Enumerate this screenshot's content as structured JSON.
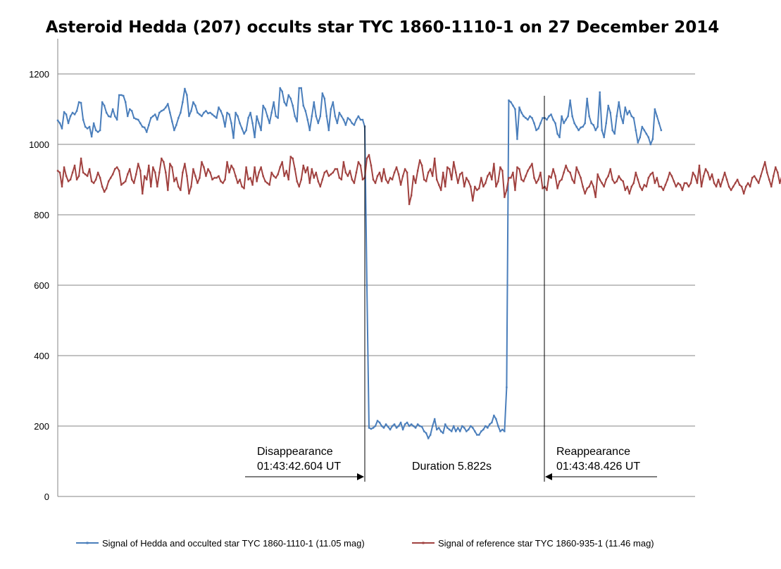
{
  "chart_data": {
    "type": "line",
    "title": "Asteroid Hedda (207) occults star TYC 1860-1110-1 on 27 December 2014",
    "xlabel": "",
    "ylabel": "",
    "ylim": [
      0,
      1300
    ],
    "yticks": [
      0,
      200,
      400,
      600,
      800,
      1000,
      1200
    ],
    "xlim": [
      0,
      301
    ],
    "grid": "horizontal",
    "legend": "bottom",
    "series": [
      {
        "name": "Signal of Hedda and occulted star TYC 1860-1110-1 (11.05 mag)",
        "color": "#4a7ebb",
        "values": [
          1068,
          1060,
          1045,
          1092,
          1085,
          1060,
          1080,
          1090,
          1085,
          1095,
          1120,
          1118,
          1070,
          1050,
          1045,
          1050,
          1022,
          1060,
          1040,
          1035,
          1040,
          1120,
          1110,
          1090,
          1080,
          1078,
          1100,
          1080,
          1070,
          1140,
          1140,
          1138,
          1120,
          1080,
          1100,
          1095,
          1075,
          1072,
          1070,
          1060,
          1050,
          1048,
          1035,
          1055,
          1075,
          1080,
          1085,
          1070,
          1090,
          1095,
          1098,
          1105,
          1115,
          1090,
          1065,
          1040,
          1055,
          1075,
          1090,
          1120,
          1158,
          1140,
          1080,
          1095,
          1120,
          1110,
          1090,
          1085,
          1080,
          1090,
          1095,
          1088,
          1090,
          1085,
          1080,
          1075,
          1105,
          1095,
          1080,
          1050,
          1090,
          1085,
          1060,
          1018,
          1090,
          1080,
          1060,
          1045,
          1030,
          1040,
          1075,
          1090,
          1060,
          1020,
          1080,
          1060,
          1040,
          1110,
          1100,
          1080,
          1060,
          1090,
          1120,
          1080,
          1075,
          1160,
          1150,
          1120,
          1110,
          1140,
          1130,
          1110,
          1080,
          1065,
          1160,
          1160,
          1110,
          1095,
          1070,
          1040,
          1080,
          1120,
          1080,
          1060,
          1080,
          1145,
          1130,
          1080,
          1040,
          1100,
          1120,
          1080,
          1060,
          1090,
          1080,
          1070,
          1055,
          1075,
          1070,
          1060,
          1055,
          1070,
          1080,
          1070,
          1070,
          1050,
          600,
          195,
          192,
          195,
          200,
          215,
          210,
          200,
          195,
          205,
          198,
          190,
          200,
          205,
          195,
          200,
          210,
          190,
          205,
          210,
          200,
          205,
          200,
          195,
          205,
          200,
          198,
          185,
          180,
          165,
          175,
          200,
          220,
          190,
          195,
          185,
          180,
          205,
          195,
          190,
          185,
          200,
          185,
          195,
          185,
          200,
          195,
          185,
          190,
          200,
          195,
          185,
          175,
          175,
          185,
          190,
          200,
          195,
          205,
          210,
          230,
          220,
          200,
          185,
          190,
          185,
          310,
          1125,
          1120,
          1110,
          1100,
          1015,
          1105,
          1090,
          1080,
          1075,
          1070,
          1080,
          1075,
          1060,
          1040,
          1045,
          1060,
          1075,
          1075,
          1070,
          1080,
          1085,
          1070,
          1060,
          1030,
          1020,
          1080,
          1060,
          1070,
          1080,
          1125,
          1080,
          1060,
          1050,
          1040,
          1048,
          1050,
          1060,
          1130,
          1080,
          1060,
          1055,
          1040,
          1050,
          1148,
          1040,
          1020,
          1060,
          1110,
          1090,
          1040,
          1030,
          1080,
          1120,
          1080,
          1060,
          1105,
          1085,
          1095,
          1080,
          1075,
          1040,
          1005,
          1020,
          1050,
          1040,
          1030,
          1020,
          1000,
          1015,
          1100,
          1080,
          1060,
          1040
        ]
      },
      {
        "name": "Signal of reference star TYC 1860-935-1 (11.46 mag)",
        "color": "#a0413f",
        "values": [
          925,
          920,
          880,
          935,
          910,
          895,
          900,
          920,
          940,
          900,
          910,
          960,
          920,
          915,
          910,
          930,
          895,
          890,
          900,
          920,
          905,
          880,
          865,
          875,
          895,
          905,
          915,
          930,
          935,
          925,
          885,
          890,
          895,
          915,
          930,
          900,
          890,
          915,
          945,
          925,
          860,
          910,
          900,
          940,
          880,
          935,
          920,
          880,
          920,
          960,
          950,
          920,
          870,
          945,
          935,
          895,
          905,
          880,
          870,
          920,
          945,
          910,
          860,
          880,
          930,
          910,
          890,
          905,
          950,
          935,
          910,
          930,
          920,
          900,
          905,
          905,
          910,
          895,
          890,
          900,
          950,
          920,
          940,
          930,
          910,
          890,
          900,
          880,
          875,
          935,
          900,
          905,
          885,
          935,
          895,
          920,
          935,
          910,
          895,
          890,
          885,
          920,
          910,
          905,
          915,
          935,
          950,
          910,
          925,
          900,
          965,
          960,
          930,
          895,
          880,
          900,
          940,
          920,
          935,
          890,
          930,
          905,
          920,
          895,
          880,
          900,
          920,
          925,
          910,
          915,
          920,
          930,
          930,
          905,
          900,
          950,
          920,
          910,
          925,
          900,
          890,
          920,
          950,
          940,
          900,
          905,
          960,
          970,
          940,
          900,
          890,
          910,
          920,
          895,
          930,
          900,
          890,
          905,
          900,
          920,
          935,
          915,
          885,
          910,
          930,
          920,
          830,
          855,
          910,
          890,
          925,
          955,
          940,
          900,
          895,
          920,
          930,
          910,
          960,
          900,
          885,
          870,
          920,
          880,
          935,
          930,
          900,
          950,
          920,
          890,
          915,
          920,
          880,
          905,
          895,
          880,
          840,
          880,
          870,
          875,
          905,
          880,
          890,
          910,
          920,
          900,
          945,
          880,
          895,
          935,
          925,
          850,
          870,
          905,
          905,
          920,
          870,
          935,
          930,
          900,
          895,
          910,
          925,
          935,
          945,
          905,
          890,
          900,
          920,
          875,
          880,
          870,
          910,
          905,
          930,
          910,
          875,
          895,
          900,
          920,
          940,
          925,
          920,
          900,
          890,
          935,
          920,
          905,
          880,
          860,
          875,
          880,
          895,
          880,
          850,
          915,
          900,
          890,
          880,
          900,
          910,
          930,
          900,
          890,
          895,
          910,
          900,
          895,
          870,
          880,
          860,
          880,
          890,
          920,
          900,
          880,
          870,
          885,
          880,
          905,
          915,
          920,
          890,
          905,
          880,
          880,
          870,
          885,
          900,
          920,
          910,
          895,
          880,
          890,
          885,
          870,
          890,
          890,
          880,
          890,
          920,
          910,
          890,
          940,
          880,
          910,
          930,
          920,
          900,
          915,
          890,
          880,
          900,
          880,
          900,
          920,
          900,
          880,
          870,
          880,
          890,
          900,
          885,
          880,
          860,
          880,
          890,
          880,
          905,
          910,
          900,
          890,
          910,
          930,
          950,
          920,
          900,
          880,
          910,
          935,
          920,
          890,
          910,
          920,
          935,
          950,
          940,
          910,
          880
        ]
      }
    ],
    "annotations": {
      "disappearance_label": "Disappearance",
      "disappearance_time": "01:43:42.604 UT",
      "duration": "Duration 5.822s",
      "reappearance_label": "Reappearance",
      "reappearance_time": "01:43:48.426 UT"
    }
  }
}
